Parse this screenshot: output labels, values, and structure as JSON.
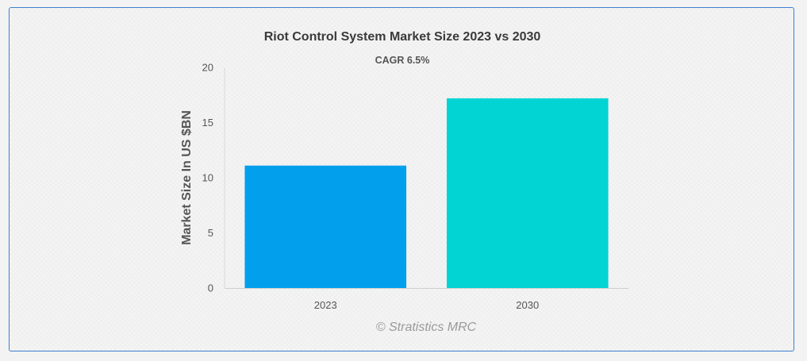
{
  "chart_data": {
    "type": "bar",
    "title": "Riot Control System Market Size 2023 vs 2030",
    "subtitle": "CAGR 6.5%",
    "xlabel": "",
    "ylabel": "Market Size In US $BN",
    "categories": [
      "2023",
      "2030"
    ],
    "values": [
      11.1,
      17.2
    ],
    "ylim": [
      0,
      20
    ],
    "yticks": [
      0,
      5,
      10,
      15,
      20
    ],
    "colors": [
      "#02a0ec",
      "#02d4d4"
    ],
    "grid": false,
    "legend": "none"
  },
  "credit": "© Stratistics MRC"
}
